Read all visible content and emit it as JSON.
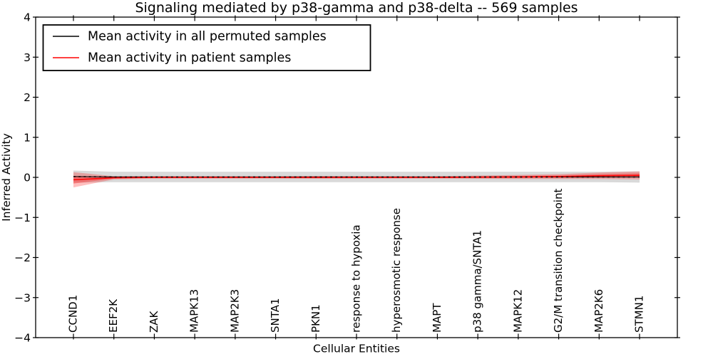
{
  "figure_title": "Signaling mediated by p38-gamma and p38-delta -- 569 samples",
  "chart_data": {
    "type": "line",
    "title": "Signaling mediated by p38-gamma and p38-delta -- 569 samples",
    "xlabel": "Cellular Entities",
    "ylabel": "Inferred Activity",
    "ylim": [
      -4,
      4
    ],
    "yticks": {
      "values": [
        4,
        3,
        2,
        1,
        0,
        -1,
        -2,
        -3,
        -4
      ],
      "labels": [
        "4",
        "3",
        "2",
        "1",
        "0",
        "−1",
        "−2",
        "−3",
        "−4"
      ]
    },
    "grid": false,
    "x_tick_label_rotation_deg": 90,
    "categories": [
      "CCND1",
      "EEF2K",
      "ZAK",
      "MAPK13",
      "MAP2K3",
      "SNTA1",
      "PKN1",
      "response to hypoxia",
      "hyperosmotic response",
      "MAPT",
      "p38 gamma/SNTA1",
      "MAPK12",
      "G2/M transition checkpoint",
      "MAP2K6",
      "STMN1"
    ],
    "legend": {
      "position": "upper left",
      "entries": [
        {
          "label": "Mean activity in all permuted samples",
          "color": "#000000"
        },
        {
          "label": "Mean activity in patient samples",
          "color": "#ff0000"
        }
      ]
    },
    "series": [
      {
        "name": "Mean activity in all permuted samples",
        "color": "#000000",
        "line_style": "dashed-overlay",
        "band_opacity": 0.15,
        "values": [
          0.02,
          0.01,
          0.01,
          0.01,
          0.01,
          0.01,
          0.01,
          0.01,
          0.01,
          0.01,
          0.01,
          0.01,
          0.01,
          0.01,
          0.01
        ],
        "band_halfwidth": [
          0.15,
          0.13,
          0.13,
          0.13,
          0.13,
          0.13,
          0.13,
          0.13,
          0.13,
          0.13,
          0.13,
          0.13,
          0.13,
          0.13,
          0.14
        ]
      },
      {
        "name": "Mean activity in patient samples",
        "color": "#ff0000",
        "line_style": "solid",
        "band_opacity": 0.25,
        "values": [
          -0.06,
          -0.01,
          0.0,
          0.0,
          0.0,
          0.0,
          0.0,
          0.0,
          0.0,
          0.0,
          0.005,
          0.01,
          0.02,
          0.04,
          0.05
        ],
        "band_halfwidth": [
          0.19,
          0.04,
          0.03,
          0.03,
          0.03,
          0.03,
          0.035,
          0.03,
          0.03,
          0.03,
          0.04,
          0.05,
          0.06,
          0.08,
          0.1
        ]
      }
    ]
  }
}
